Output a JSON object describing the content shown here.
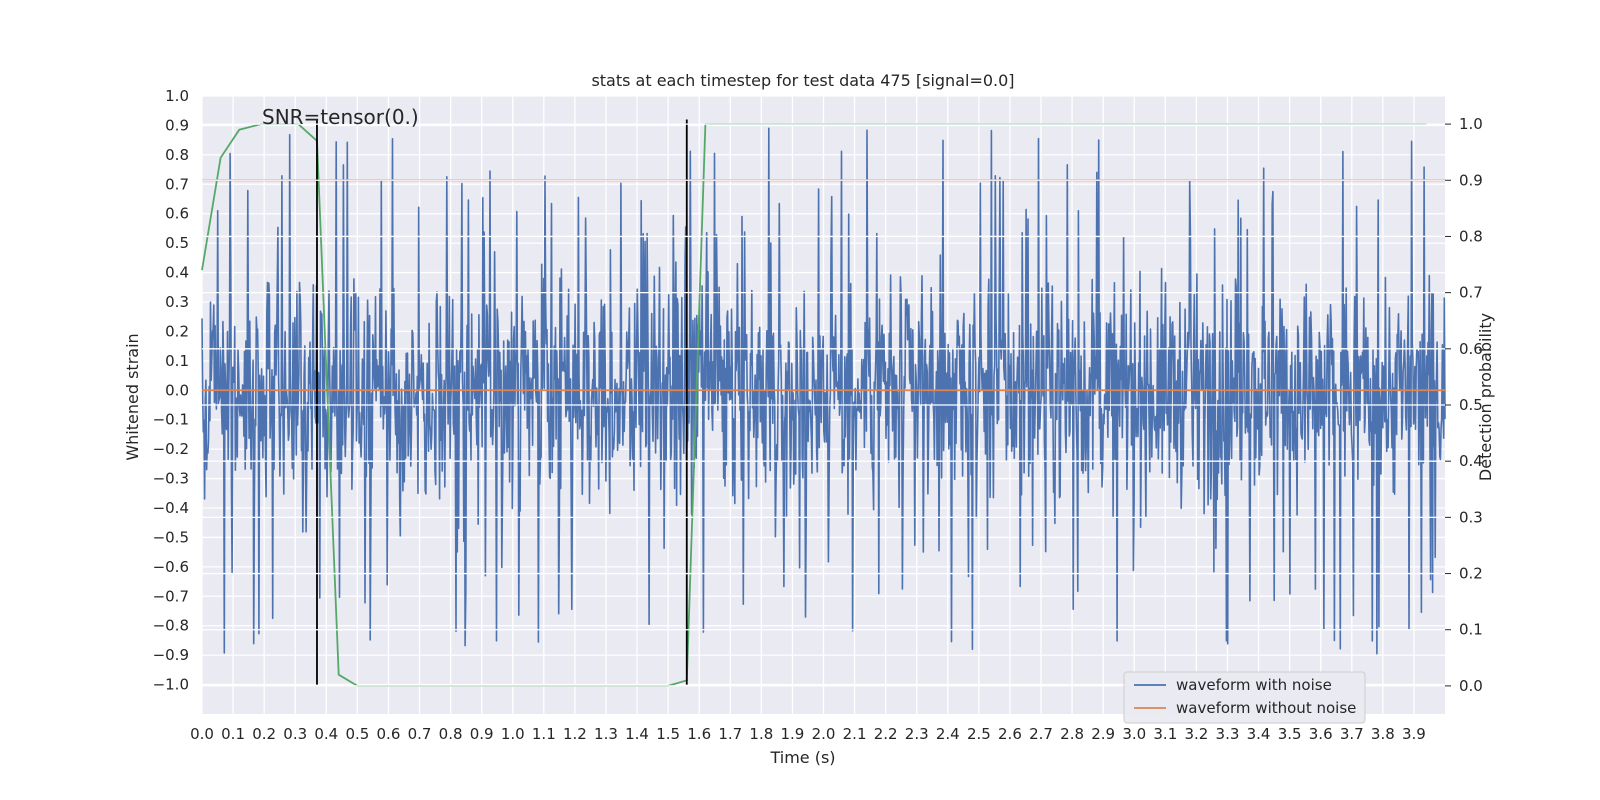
{
  "chart_data": {
    "type": "line",
    "title": "stats at each timestep for test data 475 [signal=0.0]",
    "xlabel": "Time (s)",
    "ylabel": "Whitened strain",
    "ylabel_right": "Detection probability",
    "xlim": [
      0.0,
      4.0
    ],
    "ylim": [
      -1.1,
      1.0
    ],
    "ylim_right": [
      -0.05,
      1.05
    ],
    "grid": true,
    "x_ticks": [
      "0.0",
      "0.1",
      "0.2",
      "0.3",
      "0.4",
      "0.5",
      "0.6",
      "0.7",
      "0.8",
      "0.9",
      "1.0",
      "1.1",
      "1.2",
      "1.3",
      "1.4",
      "1.5",
      "1.6",
      "1.7",
      "1.8",
      "1.9",
      "2.0",
      "2.1",
      "2.2",
      "2.3",
      "2.4",
      "2.5",
      "2.6",
      "2.7",
      "2.8",
      "2.9",
      "3.0",
      "3.1",
      "3.2",
      "3.3",
      "3.4",
      "3.5",
      "3.6",
      "3.7",
      "3.8",
      "3.9"
    ],
    "y_ticks": [
      "1.0",
      "0.9",
      "0.8",
      "0.7",
      "0.6",
      "0.5",
      "0.4",
      "0.3",
      "0.2",
      "0.1",
      "0.0",
      "−0.1",
      "−0.2",
      "−0.3",
      "−0.4",
      "−0.5",
      "−0.6",
      "−0.7",
      "−0.8",
      "−0.9",
      "−1.0"
    ],
    "y_ticks_right": [
      "1.0",
      "0.9",
      "0.8",
      "0.7",
      "0.6",
      "0.5",
      "0.4",
      "0.3",
      "0.2",
      "0.1",
      "0.0"
    ],
    "annotation": "SNR=tensor(0.)",
    "legend": {
      "location": "lower-right",
      "entries": [
        {
          "label": "waveform with noise",
          "color": "#4c72b0"
        },
        {
          "label": "waveform without noise",
          "color": "#dd8452"
        }
      ]
    },
    "series": [
      {
        "name": "waveform with noise",
        "axis": "left",
        "color": "#4c72b0",
        "noise_envelope": {
          "x_start": 0.0,
          "x_end": 4.0,
          "typical_amplitude": 0.45,
          "min": -1.0,
          "max": 0.92
        }
      },
      {
        "name": "waveform without noise",
        "axis": "left",
        "color": "#dd8452",
        "x": [
          0.0,
          4.0
        ],
        "y": [
          0.0,
          0.0
        ]
      },
      {
        "name": "detection probability",
        "axis": "right",
        "color": "#55a868",
        "x": [
          0.0,
          0.06,
          0.12,
          0.19,
          0.25,
          0.31,
          0.37,
          0.44,
          0.5,
          0.62,
          0.75,
          0.87,
          1.0,
          1.12,
          1.25,
          1.37,
          1.5,
          1.56,
          1.62,
          1.69,
          2.0,
          2.5,
          3.0,
          3.5,
          3.94
        ],
        "y": [
          0.74,
          0.94,
          0.99,
          1.0,
          1.0,
          1.0,
          0.97,
          0.02,
          0.0,
          0.0,
          0.0,
          0.0,
          0.0,
          0.0,
          0.0,
          0.0,
          0.0,
          0.01,
          1.0,
          1.0,
          1.0,
          1.0,
          1.0,
          1.0,
          1.0
        ]
      },
      {
        "name": "threshold",
        "axis": "right",
        "color": "#c44e52",
        "x": [
          0.0,
          4.0
        ],
        "y": [
          0.9,
          0.9
        ]
      }
    ],
    "vertical_markers": [
      {
        "x": 0.37,
        "y_range": [
          -1.0,
          0.92
        ],
        "color": "#000000"
      },
      {
        "x": 1.56,
        "y_range": [
          -1.0,
          0.92
        ],
        "color": "#000000"
      }
    ]
  }
}
